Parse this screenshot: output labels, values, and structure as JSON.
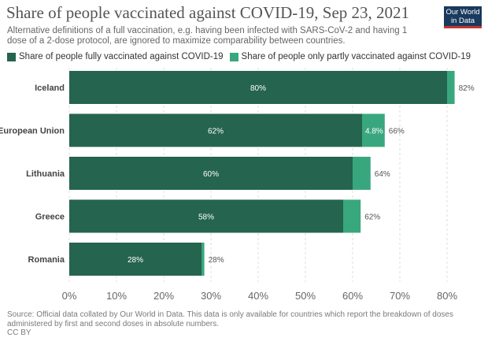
{
  "header": {
    "title": "Share of people vaccinated against COVID-19, Sep 23, 2021",
    "subtitle": "Alternative definitions of a full vaccination, e.g. having been infected with SARS-CoV-2 and having 1 dose of a 2-dose protocol, are ignored to maximize comparability between countries.",
    "logo_line1": "Our World",
    "logo_line2": "in Data"
  },
  "colors": {
    "fully": "#25644e",
    "partly": "#39a77e",
    "logo_bg": "#1a3a5e",
    "logo_accent": "#c2352e"
  },
  "chart_data": {
    "type": "bar",
    "orientation": "horizontal",
    "stacked": true,
    "categories": [
      "Iceland",
      "European Union",
      "Lithuania",
      "Greece",
      "Romania"
    ],
    "series": [
      {
        "name": "Share of people fully vaccinated against COVID-19",
        "values": [
          80,
          62,
          60,
          58,
          28
        ],
        "labels": [
          "80%",
          "62%",
          "60%",
          "58%",
          "28%"
        ]
      },
      {
        "name": "Share of people only partly vaccinated against COVID-19",
        "values": [
          1.6,
          4.8,
          3.8,
          3.7,
          0.6
        ],
        "labels": [
          "",
          "4.8%",
          "",
          "",
          ""
        ]
      }
    ],
    "totals": [
      "82%",
      "66%",
      "64%",
      "62%",
      "28%"
    ],
    "xlim": [
      0,
      80
    ],
    "xticks": [
      0,
      10,
      20,
      30,
      40,
      50,
      60,
      70,
      80
    ],
    "xtick_labels": [
      "0%",
      "10%",
      "20%",
      "30%",
      "40%",
      "50%",
      "60%",
      "70%",
      "80%"
    ],
    "grid": true,
    "legend_position": "top-left"
  },
  "footer": {
    "source": "Source: Official data collated by Our World in Data. This data is only available for countries which report the breakdown of doses administered by first and second doses in absolute numbers.",
    "license": "CC BY"
  }
}
